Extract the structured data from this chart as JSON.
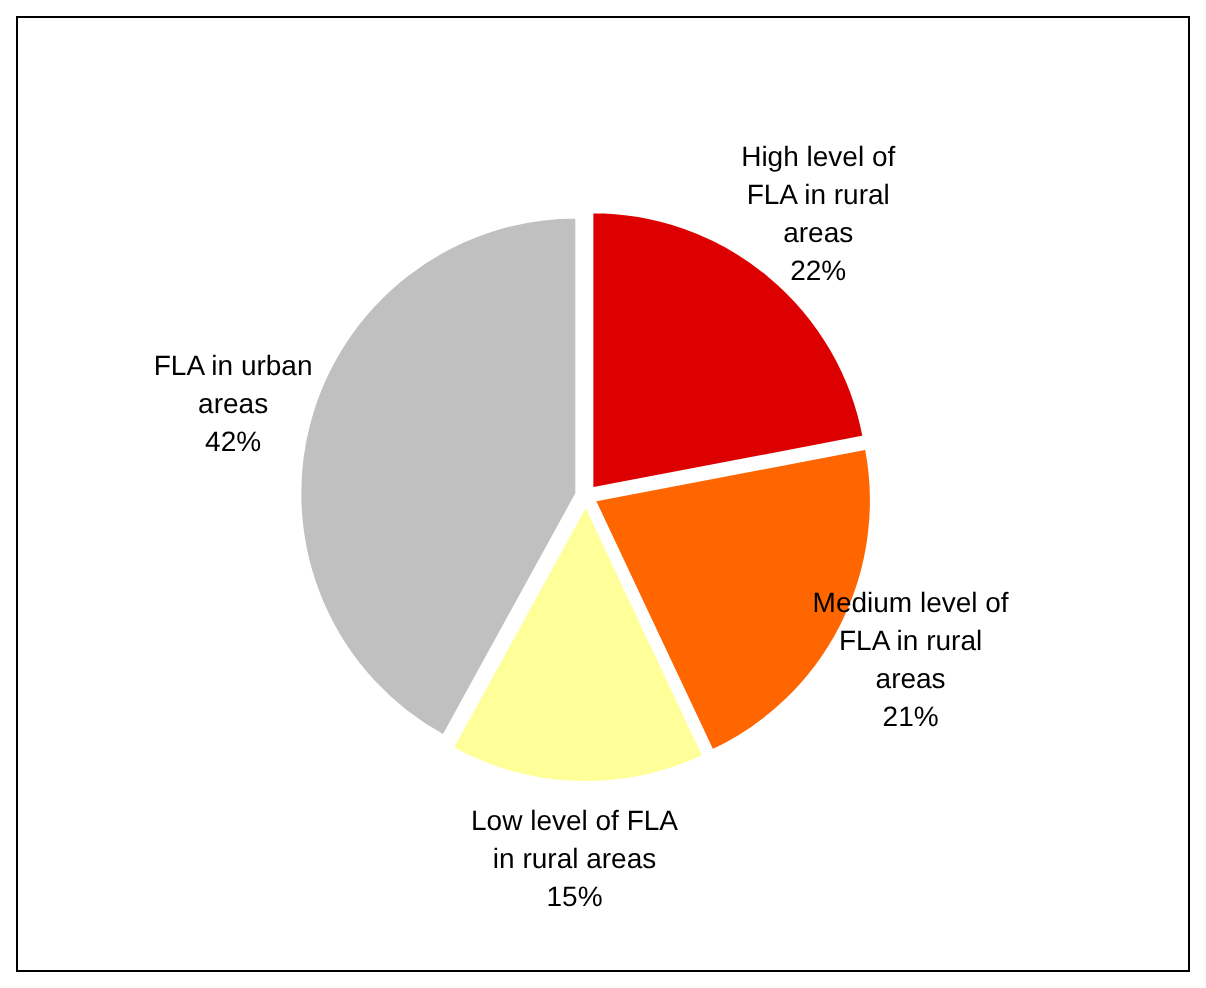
{
  "chart_data": {
    "type": "pie",
    "categories": [
      "High level of FLA in rural areas",
      "Medium level of FLA in rural areas",
      "Low level of FLA in rural areas",
      "FLA in urban areas"
    ],
    "values": [
      22,
      21,
      15,
      42
    ],
    "colors": [
      "#dd0000",
      "#ff6600",
      "#ffff99",
      "#c0c0c0"
    ],
    "value_labels": [
      "22%",
      "21%",
      "15%",
      "42%"
    ]
  }
}
